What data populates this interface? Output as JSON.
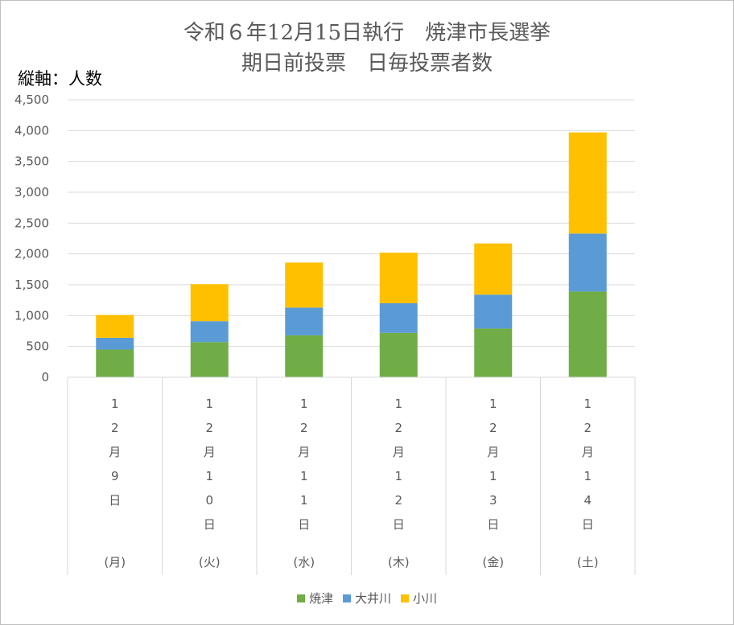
{
  "chart_data": {
    "type": "stacked-bar",
    "title": [
      "令和６年12月15日執行　焼津市長選挙",
      "期日前投票　日毎投票者数"
    ],
    "ylabel": "縦軸：人数",
    "ylim": [
      0,
      4500
    ],
    "yticks": [
      0,
      500,
      1000,
      1500,
      2000,
      2500,
      3000,
      3500,
      4000,
      4500
    ],
    "ytick_labels": [
      "0",
      "500",
      "1,000",
      "1,500",
      "2,000",
      "2,500",
      "3,000",
      "3,500",
      "4,000",
      "4,500"
    ],
    "categories": [
      {
        "date_chars": [
          "1",
          "2",
          "月",
          "9",
          "日"
        ],
        "weekday": "(月)"
      },
      {
        "date_chars": [
          "1",
          "2",
          "月",
          "1",
          "0",
          "日"
        ],
        "weekday": "(火)"
      },
      {
        "date_chars": [
          "1",
          "2",
          "月",
          "1",
          "1",
          "日"
        ],
        "weekday": "(水)"
      },
      {
        "date_chars": [
          "1",
          "2",
          "月",
          "1",
          "2",
          "日"
        ],
        "weekday": "(木)"
      },
      {
        "date_chars": [
          "1",
          "2",
          "月",
          "1",
          "3",
          "日"
        ],
        "weekday": "(金)"
      },
      {
        "date_chars": [
          "1",
          "2",
          "月",
          "1",
          "4",
          "日"
        ],
        "weekday": "(土)"
      }
    ],
    "series": [
      {
        "name": "焼津",
        "color": "#70ad47",
        "values": [
          450,
          570,
          680,
          720,
          790,
          1390
        ]
      },
      {
        "name": "大井川",
        "color": "#5b9bd5",
        "values": [
          190,
          340,
          450,
          480,
          550,
          940
        ]
      },
      {
        "name": "小川",
        "color": "#ffc000",
        "values": [
          370,
          600,
          730,
          820,
          830,
          1640
        ]
      }
    ],
    "grid": true,
    "legend_position": "bottom"
  }
}
